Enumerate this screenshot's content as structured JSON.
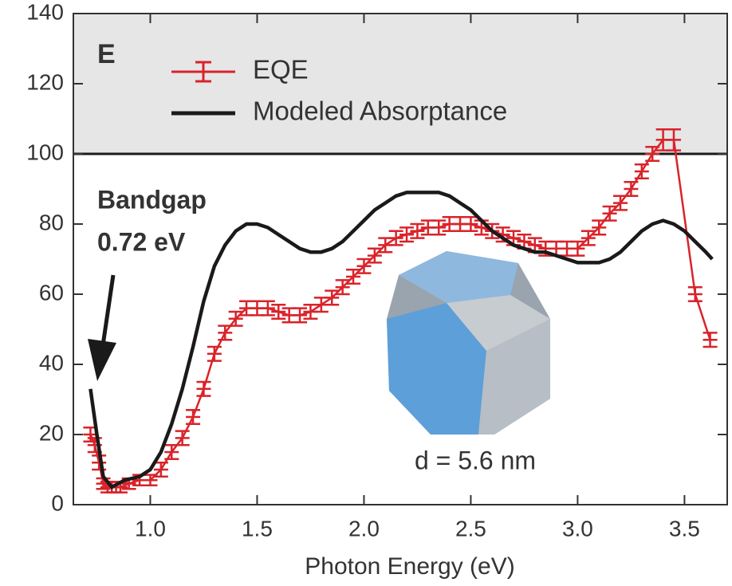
{
  "chart_data": {
    "type": "line",
    "panel_label": "E",
    "x_label": "Photon Energy (eV)",
    "xlim": [
      0.64,
      3.7
    ],
    "ylim": [
      0,
      140
    ],
    "xticks": [
      {
        "value": 1,
        "label": "1.0"
      },
      1.5,
      {
        "value": 2,
        "label": "2.0"
      },
      2.5,
      {
        "value": 3,
        "label": "3.0"
      },
      3.5
    ],
    "yticks": [
      0,
      20,
      40,
      60,
      80,
      100,
      120,
      140
    ],
    "reference_line": 100,
    "shade_above_reference": "#e6e6e6",
    "legend": "upper left",
    "annotations": [
      "Bandgap",
      "0.72 eV",
      "d = 5.6 nm"
    ],
    "series": [
      {
        "name": "EQE",
        "color": "#d9232a",
        "error_bars": true,
        "x": [
          0.72,
          0.74,
          0.76,
          0.78,
          0.8,
          0.82,
          0.84,
          0.86,
          0.9,
          0.95,
          1.0,
          1.05,
          1.1,
          1.15,
          1.2,
          1.25,
          1.3,
          1.35,
          1.4,
          1.45,
          1.5,
          1.55,
          1.6,
          1.65,
          1.7,
          1.75,
          1.8,
          1.85,
          1.9,
          1.95,
          2.0,
          2.05,
          2.1,
          2.15,
          2.2,
          2.25,
          2.3,
          2.35,
          2.4,
          2.45,
          2.5,
          2.55,
          2.6,
          2.65,
          2.7,
          2.75,
          2.8,
          2.85,
          2.9,
          2.95,
          3.0,
          3.05,
          3.1,
          3.15,
          3.2,
          3.25,
          3.3,
          3.35,
          3.4,
          3.45,
          3.55,
          3.62
        ],
        "values": [
          20,
          17,
          12,
          6,
          5,
          5,
          5,
          5,
          6,
          7,
          7,
          10,
          15,
          19,
          25,
          33,
          43,
          49,
          53,
          56,
          56,
          56,
          55,
          54,
          54,
          55,
          57,
          59,
          62,
          65,
          68,
          71,
          74,
          76,
          77,
          78,
          79,
          79,
          80,
          80,
          80,
          79,
          78,
          77,
          76,
          75,
          74,
          73,
          73,
          73,
          73,
          76,
          79,
          83,
          86,
          90,
          95,
          100,
          104,
          104,
          60,
          47
        ],
        "errors": [
          2,
          2,
          2,
          1.5,
          1.5,
          1.5,
          1.5,
          1.5,
          1.5,
          1.5,
          1.5,
          2,
          2,
          2,
          2,
          2,
          2,
          2,
          2,
          2,
          2,
          2,
          2,
          2,
          2,
          2,
          2,
          2,
          2,
          2,
          2,
          2,
          2,
          2,
          2,
          2,
          2,
          2,
          2,
          2,
          2,
          2,
          2,
          2,
          2,
          2,
          2,
          2,
          2,
          2,
          2,
          2,
          2,
          2,
          2,
          2,
          2,
          2,
          3,
          3,
          2,
          2
        ]
      },
      {
        "name": "Modeled Absorptance",
        "color": "#1a1a1a",
        "x": [
          0.72,
          0.75,
          0.78,
          0.82,
          0.88,
          0.95,
          1.0,
          1.05,
          1.1,
          1.15,
          1.2,
          1.25,
          1.3,
          1.35,
          1.4,
          1.45,
          1.5,
          1.55,
          1.6,
          1.65,
          1.7,
          1.75,
          1.8,
          1.85,
          1.9,
          1.95,
          2.0,
          2.05,
          2.1,
          2.15,
          2.2,
          2.25,
          2.3,
          2.35,
          2.4,
          2.45,
          2.5,
          2.55,
          2.6,
          2.65,
          2.7,
          2.75,
          2.8,
          2.85,
          2.9,
          2.95,
          3.0,
          3.05,
          3.1,
          3.15,
          3.2,
          3.25,
          3.3,
          3.35,
          3.4,
          3.45,
          3.5,
          3.55,
          3.6,
          3.63
        ],
        "values": [
          33,
          20,
          8,
          5,
          7,
          8,
          10,
          15,
          23,
          33,
          45,
          58,
          68,
          74,
          78,
          80,
          80,
          79,
          77,
          75,
          73,
          72,
          72,
          73,
          75,
          78,
          81,
          84,
          86,
          88,
          89,
          89,
          89,
          89,
          88,
          86,
          84,
          81,
          78,
          76,
          74,
          73,
          72,
          72,
          71,
          70,
          69,
          69,
          69,
          70,
          72,
          75,
          78,
          80,
          81,
          80,
          78,
          75,
          72,
          70
        ]
      }
    ]
  }
}
